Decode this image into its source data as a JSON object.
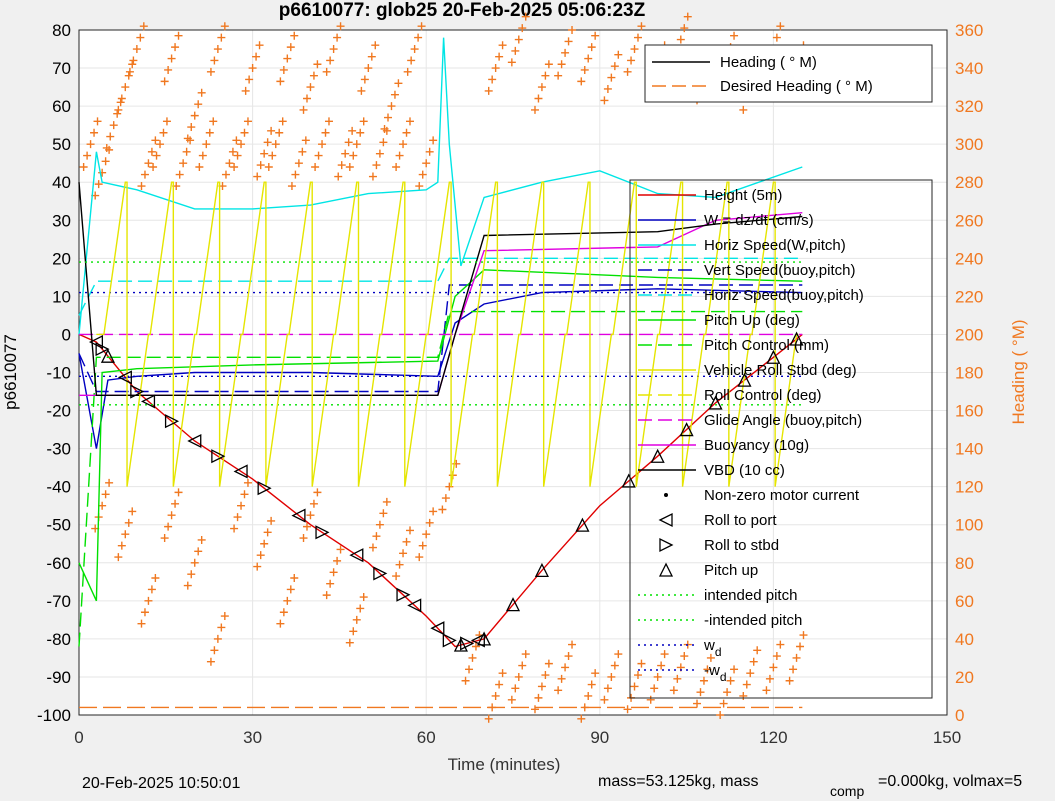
{
  "chart_data": {
    "type": "line",
    "title": "p6610077: glob25 20-Feb-2025 05:06:23Z",
    "xlabel": "Time (minutes)",
    "ylabel_left": "p6610077",
    "ylabel_right": "Heading (  °M)",
    "xlim": [
      0,
      150
    ],
    "ylim_left": [
      -100,
      80
    ],
    "ylim_right": [
      0,
      360
    ],
    "xticks": [
      "0",
      "30",
      "60",
      "90",
      "120",
      "150"
    ],
    "yticks_left": [
      "80",
      "70",
      "60",
      "50",
      "40",
      "30",
      "20",
      "10",
      "0",
      "-10",
      "-20",
      "-30",
      "-40",
      "-50",
      "-60",
      "-70",
      "-80",
      "-90",
      "-100"
    ],
    "yticks_right": [
      "360",
      "340",
      "320",
      "300",
      "280",
      "260",
      "240",
      "220",
      "200",
      "180",
      "160",
      "140",
      "120",
      "100",
      "80",
      "60",
      "40",
      "20",
      "0"
    ],
    "grid": true,
    "legend_heading": [
      "Heading (  ° M)",
      "Desired Heading (    ° M)"
    ],
    "legend_main": [
      {
        "label": "Height (5m)",
        "color": "#e00000",
        "style": "solid"
      },
      {
        "label": "W = dz/dt (cm/s)",
        "color": "#0000c0",
        "style": "solid"
      },
      {
        "label": "Horiz Speed(W,pitch)",
        "color": "#00e5e5",
        "style": "solid"
      },
      {
        "label": "Vert Speed(buoy,pitch)",
        "color": "#0000c0",
        "style": "dashed"
      },
      {
        "label": "Horiz Speed(buoy,pitch)",
        "color": "#00e5e5",
        "style": "dashed"
      },
      {
        "label": "Pitch Up (deg)",
        "color": "#00e000",
        "style": "solid"
      },
      {
        "label": "Pitch Control (mm)",
        "color": "#00e000",
        "style": "dashed"
      },
      {
        "label": "Vehicle Roll Stbd (deg)",
        "color": "#e5e500",
        "style": "solid"
      },
      {
        "label": "Roll Control (deg)",
        "color": "#e5e500",
        "style": "dashed"
      },
      {
        "label": "Glide Angle (buoy,pitch)",
        "color": "#e000e0",
        "style": "dashed"
      },
      {
        "label": "Buoyancy (10g)",
        "color": "#e000e0",
        "style": "solid"
      },
      {
        "label": "VBD (10 cc)",
        "color": "#000000",
        "style": "solid"
      },
      {
        "label": "Non-zero motor current",
        "color": "#000000",
        "style": "dot"
      },
      {
        "label": "Roll to port",
        "color": "#000000",
        "style": "tri-left"
      },
      {
        "label": "Roll to stbd",
        "color": "#000000",
        "style": "tri-right"
      },
      {
        "label": "Pitch up",
        "color": "#000000",
        "style": "tri-up"
      },
      {
        "label": "intended pitch",
        "color": "#00e000",
        "style": "dotted"
      },
      {
        "label": "-intended pitch",
        "color": "#00e000",
        "style": "dotted"
      },
      {
        "label": "w",
        "sub": "d",
        "color": "#0000c0",
        "style": "dotted"
      },
      {
        "label": "-w",
        "sub": "d",
        "color": "#0000c0",
        "style": "dotted"
      }
    ],
    "series": [
      {
        "name": "Height (5m)",
        "color": "#e00000",
        "x": [
          0,
          3,
          10,
          20,
          30,
          40,
          50,
          60,
          65,
          70,
          80,
          90,
          100,
          110,
          120,
          125
        ],
        "y": [
          0,
          -2,
          -15,
          -28,
          -38,
          -50,
          -60,
          -74,
          -82,
          -80,
          -62,
          -45,
          -32,
          -18,
          -6,
          0
        ]
      },
      {
        "name": "W = dz/dt (cm/s)",
        "color": "#0000c0",
        "x": [
          0,
          3,
          5,
          10,
          20,
          40,
          62,
          65,
          70,
          80,
          100,
          125
        ],
        "y": [
          -5,
          -30,
          -12,
          -11,
          -10,
          -10,
          -11,
          3,
          8,
          11,
          12,
          11
        ]
      },
      {
        "name": "Horiz Speed(W,pitch)",
        "color": "#00e5e5",
        "x": [
          0,
          3,
          4,
          10,
          20,
          30,
          40,
          50,
          60,
          62,
          63,
          64,
          66,
          70,
          80,
          90,
          100,
          110,
          125
        ],
        "y": [
          0,
          48,
          40,
          38,
          33,
          33,
          34,
          37,
          38,
          40,
          78,
          50,
          18,
          36,
          40,
          43,
          37,
          36,
          44
        ]
      },
      {
        "name": "Vert Speed(buoy,pitch)",
        "color": "#0000c0",
        "x": [
          0,
          3,
          62,
          64,
          125
        ],
        "y": [
          -5,
          -15,
          -15,
          13,
          13
        ]
      },
      {
        "name": "Horiz Speed(buoy,pitch)",
        "color": "#00e5e5",
        "x": [
          0,
          3,
          62,
          64,
          125
        ],
        "y": [
          5,
          14,
          14,
          20,
          20
        ]
      },
      {
        "name": "Pitch Up (deg)",
        "color": "#00e000",
        "x": [
          0,
          3,
          4,
          10,
          30,
          62,
          65,
          70,
          100,
          125
        ],
        "y": [
          -60,
          -70,
          -10,
          -9,
          -8,
          -7,
          10,
          17,
          15,
          14
        ]
      },
      {
        "name": "Pitch Control (mm)",
        "color": "#00e000",
        "x": [
          0,
          3,
          62,
          64,
          125
        ],
        "y": [
          -82,
          -6,
          -6,
          6,
          6
        ]
      },
      {
        "name": "Glide Angle (buoy,pitch)",
        "color": "#e000e0",
        "x": [
          0,
          125
        ],
        "y": [
          0,
          0
        ]
      },
      {
        "name": "Buoyancy (10g)",
        "color": "#e000e0",
        "x": [
          0,
          3,
          62,
          65,
          70,
          100,
          110,
          125
        ],
        "y": [
          -16,
          -16,
          -16,
          0,
          22,
          23,
          30,
          32
        ]
      },
      {
        "name": "VBD (10 cc)",
        "color": "#000000",
        "x": [
          0,
          3,
          62,
          65,
          70,
          100,
          110,
          125
        ],
        "y": [
          40,
          -16,
          -16,
          0,
          26,
          27,
          29,
          31
        ]
      },
      {
        "name": "intended pitch",
        "color": "#00e000",
        "x": [
          0,
          125
        ],
        "y": [
          19,
          19
        ]
      },
      {
        "name": "-intended pitch",
        "color": "#00e000",
        "x": [
          0,
          125
        ],
        "y": [
          -18.5,
          -18.5
        ]
      },
      {
        "name": "w",
        "color": "#0000c0",
        "x": [
          0,
          125
        ],
        "y": [
          11,
          11
        ]
      },
      {
        "name": "-w",
        "color": "#0000c0",
        "x": [
          0,
          125
        ],
        "y": [
          -11,
          -11
        ]
      }
    ],
    "roll_to_port_x": [
      3,
      8,
      12,
      20,
      28,
      38,
      48,
      58,
      62,
      69
    ],
    "roll_to_stbd_x": [
      4,
      10,
      16,
      24,
      32,
      42,
      52,
      56,
      64,
      67
    ],
    "pitch_up_x": [
      5,
      66,
      70,
      75,
      80,
      87,
      95,
      100,
      105,
      110,
      115,
      120,
      124
    ],
    "heading_right_axis": {
      "desired": 4,
      "dive_x": [
        2,
        4,
        6,
        8,
        10,
        12,
        14,
        16,
        18,
        20,
        22,
        24,
        26,
        28,
        30,
        32,
        34,
        36,
        38,
        40,
        42,
        44,
        46,
        48,
        50,
        52,
        54,
        56,
        58,
        60
      ],
      "dive_y": [
        300,
        285,
        310,
        330,
        350,
        290,
        300,
        345,
        290,
        315,
        300,
        350,
        290,
        300,
        340,
        295,
        300,
        345,
        290,
        330,
        300,
        350,
        295,
        300,
        340,
        295,
        320,
        300,
        350,
        290
      ],
      "bottom_x": [
        4,
        8,
        12,
        16,
        20,
        24,
        28,
        32,
        36,
        40,
        44,
        48,
        52,
        56,
        60,
        64,
        68,
        72,
        76,
        80,
        84,
        88,
        92,
        96,
        100,
        104,
        108,
        112,
        116,
        120,
        124
      ],
      "bottom_y": [
        110,
        95,
        60,
        105,
        80,
        40,
        110,
        90,
        60,
        105,
        75,
        50,
        100,
        85,
        95,
        120,
        30,
        10,
        20,
        15,
        25,
        10,
        20,
        15,
        20,
        25,
        18,
        12,
        22,
        25,
        30
      ],
      "ascent_x": [
        72,
        76,
        80,
        84,
        88,
        92,
        96,
        100,
        104,
        108,
        112,
        116,
        120,
        124
      ],
      "ascent_y": [
        340,
        355,
        330,
        348,
        345,
        335,
        350,
        340,
        355,
        335,
        345,
        330,
        350,
        340
      ]
    },
    "footer_left": "20-Feb-2025 10:50:01",
    "footer_mass": "mass=53.125kg, mass",
    "footer_sub": "comp",
    "footer_right": "=0.000kg, volmax=5"
  }
}
